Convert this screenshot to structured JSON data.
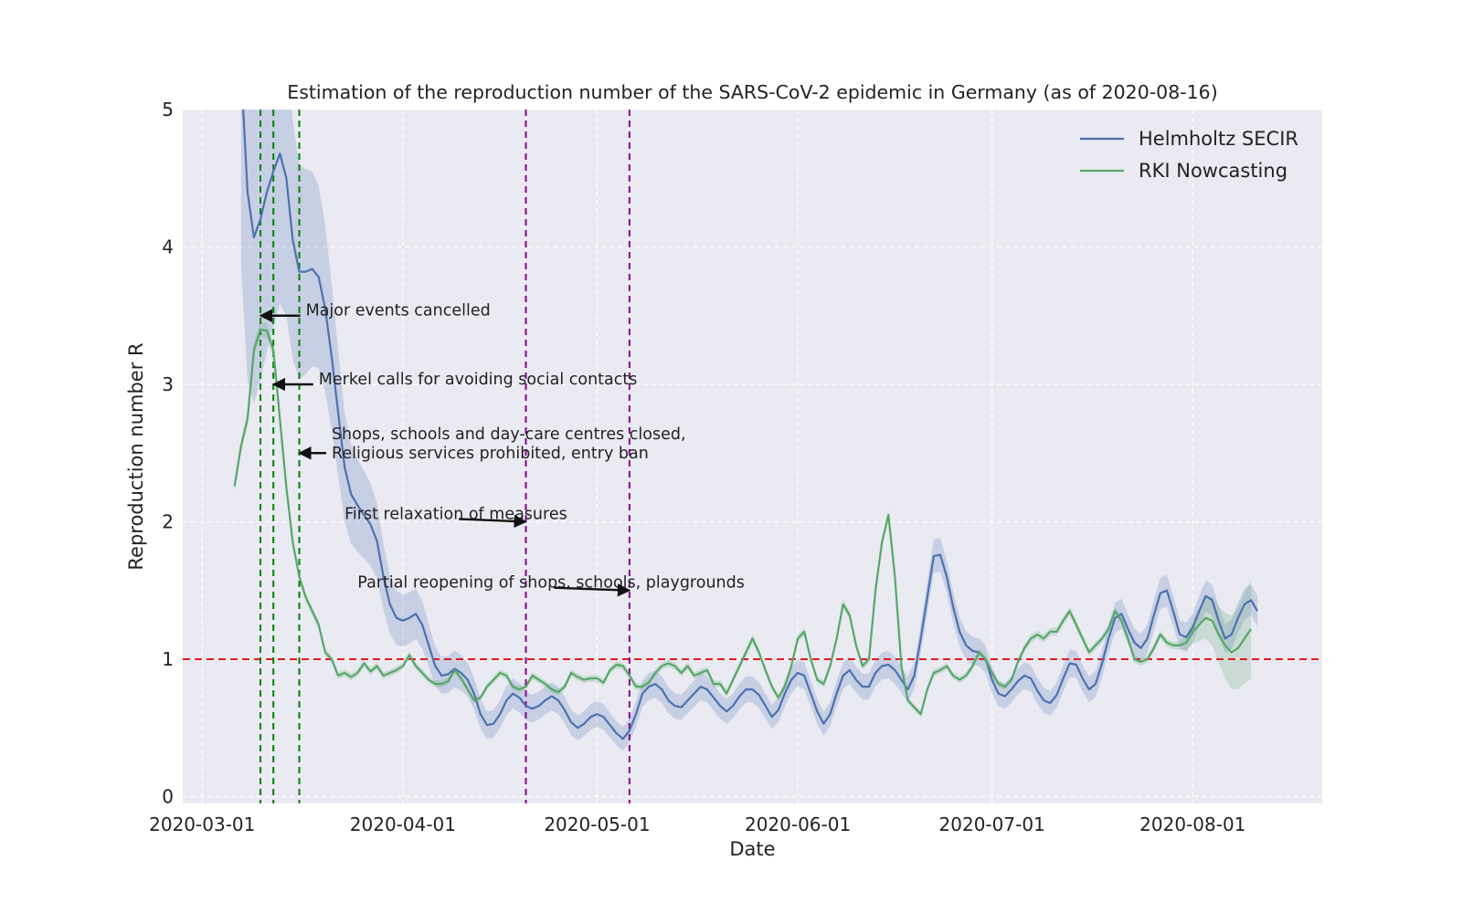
{
  "chart_data": {
    "type": "line",
    "title": "Estimation of the reproduction number of the SARS-CoV-2 epidemic in Germany (as of 2020-08-16)",
    "xlabel": "Date",
    "ylabel": "Reproduction number R",
    "xlim": [
      "2020-02-27",
      "2020-08-21"
    ],
    "ylim": [
      -0.05,
      5
    ],
    "x_ticks": [
      "2020-03-01",
      "2020-04-01",
      "2020-05-01",
      "2020-06-01",
      "2020-07-01",
      "2020-08-01"
    ],
    "y_ticks": [
      0,
      1,
      2,
      3,
      4,
      5
    ],
    "grid": true,
    "legend_position": "top-right",
    "reference_line": {
      "y": 1,
      "color": "#e41a1c",
      "style": "dashed"
    },
    "colors": {
      "secir": "#4c72b0",
      "rki": "#55a868",
      "measure": "#008000",
      "relax": "#8b008b",
      "background": "#eaeaf2"
    },
    "measure_lines": [
      {
        "date": "2020-03-10",
        "color": "#008000"
      },
      {
        "date": "2020-03-12",
        "color": "#008000"
      },
      {
        "date": "2020-03-16",
        "color": "#008000"
      },
      {
        "date": "2020-04-20",
        "color": "#8b008b"
      },
      {
        "date": "2020-05-06",
        "color": "#8b008b"
      }
    ],
    "annotations": [
      {
        "text": [
          "Major events cancelled"
        ],
        "text_at": [
          "2020-03-17",
          3.5
        ],
        "arrow_to": [
          "2020-03-10",
          3.5
        ]
      },
      {
        "text": [
          "Merkel calls for avoiding social contacts"
        ],
        "text_at": [
          "2020-03-19",
          3.0
        ],
        "arrow_to": [
          "2020-03-12",
          3.0
        ]
      },
      {
        "text": [
          "Shops, schools and day-care centres closed,",
          "Religious services prohibited, entry ban"
        ],
        "text_at": [
          "2020-03-21",
          2.6
        ],
        "arrow_to": [
          "2020-03-16",
          2.5
        ]
      },
      {
        "text": [
          "First relaxation of measures"
        ],
        "text_at": [
          "2020-03-23",
          2.02
        ],
        "arrow_to": [
          "2020-04-20",
          2.0
        ]
      },
      {
        "text": [
          "Partial reopening of shops, schools, playgrounds"
        ],
        "text_at": [
          "2020-03-25",
          1.52
        ],
        "arrow_to": [
          "2020-05-06",
          1.5
        ]
      }
    ],
    "series": [
      {
        "name": "Helmholtz SECIR",
        "color": "#4c72b0",
        "start_date": "2020-03-07",
        "values": [
          5.7,
          4.4,
          4.07,
          4.2,
          4.4,
          4.55,
          4.68,
          4.5,
          4.05,
          3.82,
          3.82,
          3.84,
          3.78,
          3.55,
          3.2,
          2.8,
          2.4,
          2.2,
          2.12,
          2.05,
          1.98,
          1.86,
          1.6,
          1.4,
          1.3,
          1.28,
          1.3,
          1.33,
          1.25,
          1.1,
          0.95,
          0.88,
          0.89,
          0.93,
          0.9,
          0.85,
          0.75,
          0.6,
          0.52,
          0.53,
          0.6,
          0.7,
          0.75,
          0.72,
          0.66,
          0.64,
          0.66,
          0.7,
          0.73,
          0.7,
          0.63,
          0.54,
          0.5,
          0.53,
          0.58,
          0.6,
          0.58,
          0.52,
          0.46,
          0.42,
          0.48,
          0.6,
          0.75,
          0.8,
          0.82,
          0.78,
          0.7,
          0.66,
          0.65,
          0.7,
          0.75,
          0.8,
          0.78,
          0.72,
          0.66,
          0.62,
          0.66,
          0.73,
          0.78,
          0.78,
          0.74,
          0.66,
          0.58,
          0.63,
          0.75,
          0.85,
          0.9,
          0.88,
          0.75,
          0.62,
          0.53,
          0.6,
          0.75,
          0.88,
          0.92,
          0.85,
          0.8,
          0.8,
          0.9,
          0.95,
          0.96,
          0.92,
          0.85,
          0.78,
          0.88,
          1.15,
          1.45,
          1.75,
          1.76,
          1.6,
          1.38,
          1.2,
          1.1,
          1.06,
          1.05,
          1.0,
          0.85,
          0.75,
          0.73,
          0.78,
          0.84,
          0.88,
          0.86,
          0.77,
          0.7,
          0.68,
          0.74,
          0.86,
          0.97,
          0.96,
          0.86,
          0.78,
          0.82,
          0.97,
          1.15,
          1.3,
          1.33,
          1.22,
          1.12,
          1.08,
          1.15,
          1.32,
          1.48,
          1.5,
          1.35,
          1.18,
          1.16,
          1.23,
          1.35,
          1.46,
          1.43,
          1.28,
          1.15,
          1.18,
          1.3,
          1.4,
          1.43,
          1.35
        ]
      },
      {
        "name": "RKI Nowcasting",
        "color": "#55a868",
        "start_date": "2020-03-06",
        "values": [
          2.26,
          2.55,
          2.75,
          3.25,
          3.4,
          3.39,
          3.25,
          2.75,
          2.25,
          1.85,
          1.6,
          1.45,
          1.35,
          1.25,
          1.05,
          1.0,
          0.88,
          0.9,
          0.87,
          0.9,
          0.97,
          0.91,
          0.95,
          0.88,
          0.9,
          0.92,
          0.95,
          1.03,
          0.95,
          0.9,
          0.85,
          0.82,
          0.82,
          0.84,
          0.92,
          0.86,
          0.78,
          0.7,
          0.72,
          0.8,
          0.85,
          0.9,
          0.88,
          0.8,
          0.78,
          0.8,
          0.88,
          0.85,
          0.82,
          0.78,
          0.76,
          0.8,
          0.9,
          0.87,
          0.85,
          0.86,
          0.86,
          0.83,
          0.92,
          0.96,
          0.95,
          0.88,
          0.8,
          0.8,
          0.83,
          0.9,
          0.95,
          0.97,
          0.95,
          0.9,
          0.95,
          0.88,
          0.9,
          0.92,
          0.82,
          0.82,
          0.75,
          0.85,
          0.95,
          1.05,
          1.15,
          1.05,
          0.92,
          0.8,
          0.72,
          0.8,
          0.95,
          1.15,
          1.2,
          1.0,
          0.85,
          0.82,
          0.95,
          1.15,
          1.4,
          1.32,
          1.1,
          0.95,
          1.0,
          1.5,
          1.85,
          2.05,
          1.6,
          0.95,
          0.7,
          0.65,
          0.6,
          0.78,
          0.9,
          0.92,
          0.95,
          0.88,
          0.85,
          0.88,
          0.95,
          1.05,
          1.0,
          0.9,
          0.82,
          0.8,
          0.85,
          0.98,
          1.08,
          1.15,
          1.18,
          1.15,
          1.2,
          1.2,
          1.28,
          1.35,
          1.25,
          1.15,
          1.05,
          1.1,
          1.15,
          1.22,
          1.35,
          1.28,
          1.15,
          1.0,
          0.98,
          1.0,
          1.08,
          1.18,
          1.12,
          1.1,
          1.1,
          1.12,
          1.2,
          1.25,
          1.3,
          1.28,
          1.18,
          1.1,
          1.05,
          1.08,
          1.15,
          1.22
        ]
      }
    ]
  }
}
